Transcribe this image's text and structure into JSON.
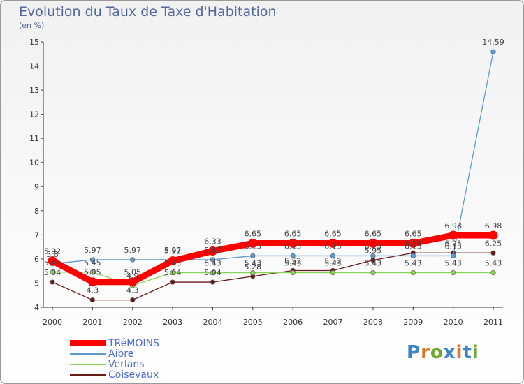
{
  "header": {
    "title": "Evolution du Taux de Taxe d'Habitation",
    "subtitle": "(en %)"
  },
  "logo": {
    "text": "Proxiti",
    "colors": [
      "#3a86c8",
      "#e8731c",
      "#6aa82f",
      "#3a86c8",
      "#e8731c",
      "#3a86c8",
      "#6aa82f"
    ]
  },
  "chart_data": {
    "type": "line",
    "title": "Evolution du Taux de Taxe d'Habitation",
    "ylabel": "(en %)",
    "xlabel": "",
    "categories": [
      "2000",
      "2001",
      "2002",
      "2003",
      "2004",
      "2005",
      "2006",
      "2007",
      "2008",
      "2009",
      "2010",
      "2011"
    ],
    "ylim": [
      4,
      15
    ],
    "yticks": [
      4,
      5,
      6,
      7,
      8,
      9,
      10,
      11,
      12,
      13,
      14,
      15
    ],
    "grid": false,
    "legend_position": "bottom-left",
    "series": [
      {
        "name": "TRéMOINS",
        "color": "#ff0000",
        "values": [
          5.92,
          5.05,
          5.05,
          5.92,
          6.33,
          6.65,
          6.65,
          6.65,
          6.65,
          6.65,
          6.98,
          6.98
        ],
        "labels": [
          "5.92",
          "5.05",
          "5.05",
          "5.92",
          "6.33",
          "6.65",
          "6.65",
          "6.65",
          "6.65",
          "6.65",
          "6.98",
          "6.98"
        ]
      },
      {
        "name": "Aibre",
        "color": "#5a9ad4",
        "values": [
          5.8,
          5.97,
          5.97,
          5.97,
          5.97,
          6.13,
          6.13,
          6.13,
          6.13,
          6.13,
          6.13,
          14.59
        ],
        "labels": [
          "5.8",
          "5.97",
          "5.97",
          "5.97",
          "5.97",
          "6.13",
          "6.13",
          "6.13",
          "6.13",
          "6.13",
          "6.13",
          "14.59"
        ]
      },
      {
        "name": "Verlans",
        "color": "#88d45a",
        "values": [
          5.45,
          5.45,
          4.9,
          5.43,
          5.43,
          5.43,
          5.43,
          5.43,
          5.43,
          5.43,
          5.43,
          5.43
        ],
        "labels": [
          "5.45",
          "5.45",
          "4.9",
          "5.43",
          "5.43",
          "5.43",
          "5.43",
          "5.43",
          "5.43",
          "5.43",
          "5.43",
          "5.43"
        ]
      },
      {
        "name": "Coisevaux",
        "color": "#6b1a1a",
        "values": [
          5.04,
          4.3,
          4.3,
          5.04,
          5.04,
          5.28,
          5.52,
          5.52,
          5.95,
          6.25,
          6.25,
          6.25
        ],
        "labels": [
          "5.04",
          "4.3",
          "4.3",
          "5.04",
          "5.04",
          "5.28",
          "5.52",
          "5.52",
          "5.95",
          "6.25",
          "6.25",
          "6.25"
        ]
      }
    ]
  }
}
